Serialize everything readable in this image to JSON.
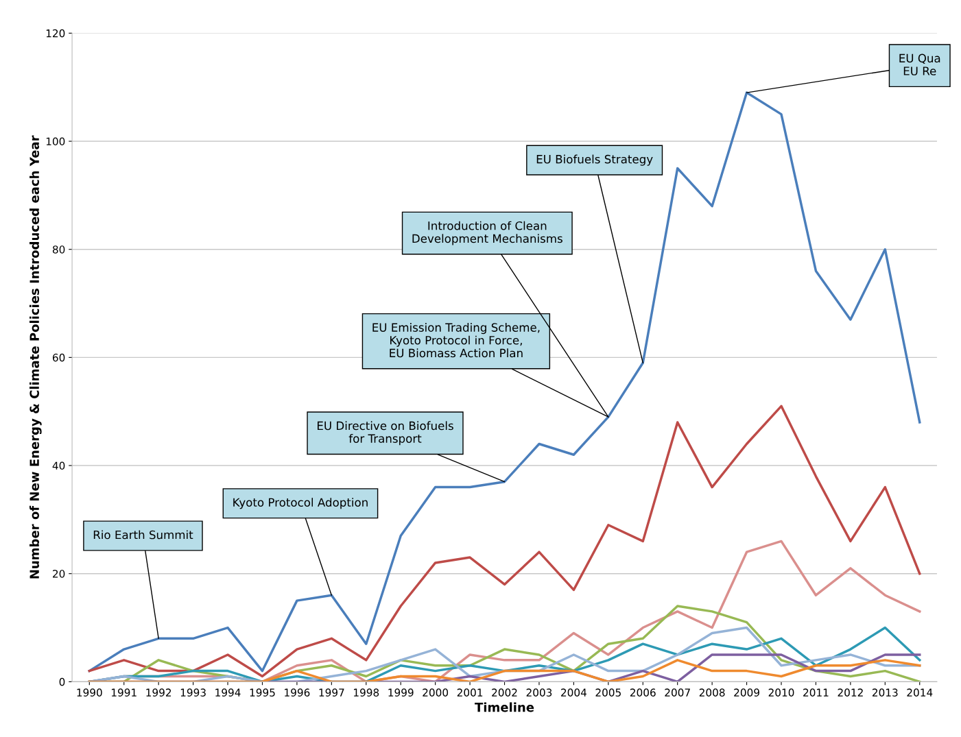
{
  "chart_data": {
    "type": "line",
    "xlabel": "Timeline",
    "ylabel": "Number of New Energy & Climate Policies Introduced each Year",
    "x": [
      1990,
      1991,
      1992,
      1993,
      1994,
      1995,
      1996,
      1997,
      1998,
      1999,
      2000,
      2001,
      2002,
      2003,
      2004,
      2005,
      2006,
      2007,
      2008,
      2009,
      2010,
      2011,
      2012,
      2013,
      2014
    ],
    "xlim": [
      1989.5,
      2014.5
    ],
    "xticks": [
      1990,
      1991,
      1992,
      1993,
      1994,
      1995,
      1996,
      1997,
      1998,
      1999,
      2000,
      2001,
      2002,
      2003,
      2004,
      2005,
      2006,
      2007,
      2008,
      2009,
      2010,
      2011,
      2012,
      2013,
      2014
    ],
    "ylim": [
      0,
      120
    ],
    "yticks": [
      0,
      20,
      40,
      60,
      80,
      100,
      120
    ],
    "grid": "y",
    "legend": false,
    "marker": "none",
    "line_style": "solid",
    "series": [
      {
        "color": "#4a7ebb",
        "values": [
          2,
          6,
          8,
          8,
          10,
          2,
          15,
          16,
          7,
          27,
          36,
          36,
          37,
          44,
          42,
          49,
          59,
          95,
          88,
          109,
          105,
          76,
          67,
          80,
          48
        ]
      },
      {
        "color": "#be4b48",
        "values": [
          2,
          4,
          2,
          2,
          5,
          1,
          6,
          8,
          4,
          14,
          22,
          23,
          18,
          24,
          17,
          29,
          26,
          48,
          36,
          44,
          51,
          38,
          26,
          36,
          20
        ]
      },
      {
        "color": "#da8f8d",
        "values": [
          0,
          1,
          1,
          1,
          1,
          0,
          3,
          4,
          0,
          1,
          0,
          5,
          4,
          4,
          9,
          5,
          10,
          13,
          10,
          24,
          26,
          16,
          21,
          16,
          13
        ]
      },
      {
        "color": "#98b954",
        "values": [
          0,
          0,
          4,
          2,
          1,
          0,
          2,
          3,
          1,
          4,
          3,
          3,
          6,
          5,
          2,
          7,
          8,
          14,
          13,
          11,
          4,
          2,
          1,
          2,
          0
        ]
      },
      {
        "color": "#2d9ab4",
        "values": [
          0,
          1,
          1,
          2,
          2,
          0,
          1,
          0,
          0,
          3,
          2,
          3,
          2,
          3,
          2,
          4,
          7,
          5,
          7,
          6,
          8,
          3,
          6,
          10,
          4
        ]
      },
      {
        "color": "#95b3d7",
        "values": [
          0,
          1,
          0,
          0,
          1,
          0,
          0,
          1,
          2,
          4,
          6,
          1,
          2,
          2,
          5,
          2,
          2,
          5,
          9,
          10,
          3,
          4,
          5,
          3,
          3
        ]
      },
      {
        "color": "#7d5fa0",
        "values": [
          0,
          0,
          0,
          0,
          0,
          0,
          0,
          0,
          0,
          0,
          0,
          1,
          0,
          1,
          2,
          0,
          2,
          0,
          5,
          5,
          5,
          2,
          2,
          5,
          5
        ]
      },
      {
        "color": "#ef8a2e",
        "values": [
          0,
          0,
          0,
          0,
          0,
          0,
          2,
          0,
          0,
          1,
          1,
          0,
          2,
          2,
          2,
          0,
          1,
          4,
          2,
          2,
          1,
          3,
          3,
          4,
          3
        ]
      }
    ],
    "annotations": [
      {
        "text": "Rio Earth Summit",
        "x": 1992,
        "y": 8
      },
      {
        "text": "Kyoto Protocol Adoption",
        "x": 1997,
        "y": 16
      },
      {
        "text": "EU Directive on Biofuels\nfor Transport",
        "x": 2002,
        "y": 37
      },
      {
        "text": "EU Emission Trading Scheme,\nKyoto Protocol in Force,\nEU Biomass Action Plan",
        "x": 2005,
        "y": 49
      },
      {
        "text": "Introduction of Clean\nDevelopment Mechanisms",
        "x": 2005,
        "y": 49
      },
      {
        "text": "EU Biofuels Strategy",
        "x": 2006,
        "y": 59
      },
      {
        "text": "EU Qua\nEU Re",
        "x": 2009,
        "y": 109
      }
    ]
  }
}
